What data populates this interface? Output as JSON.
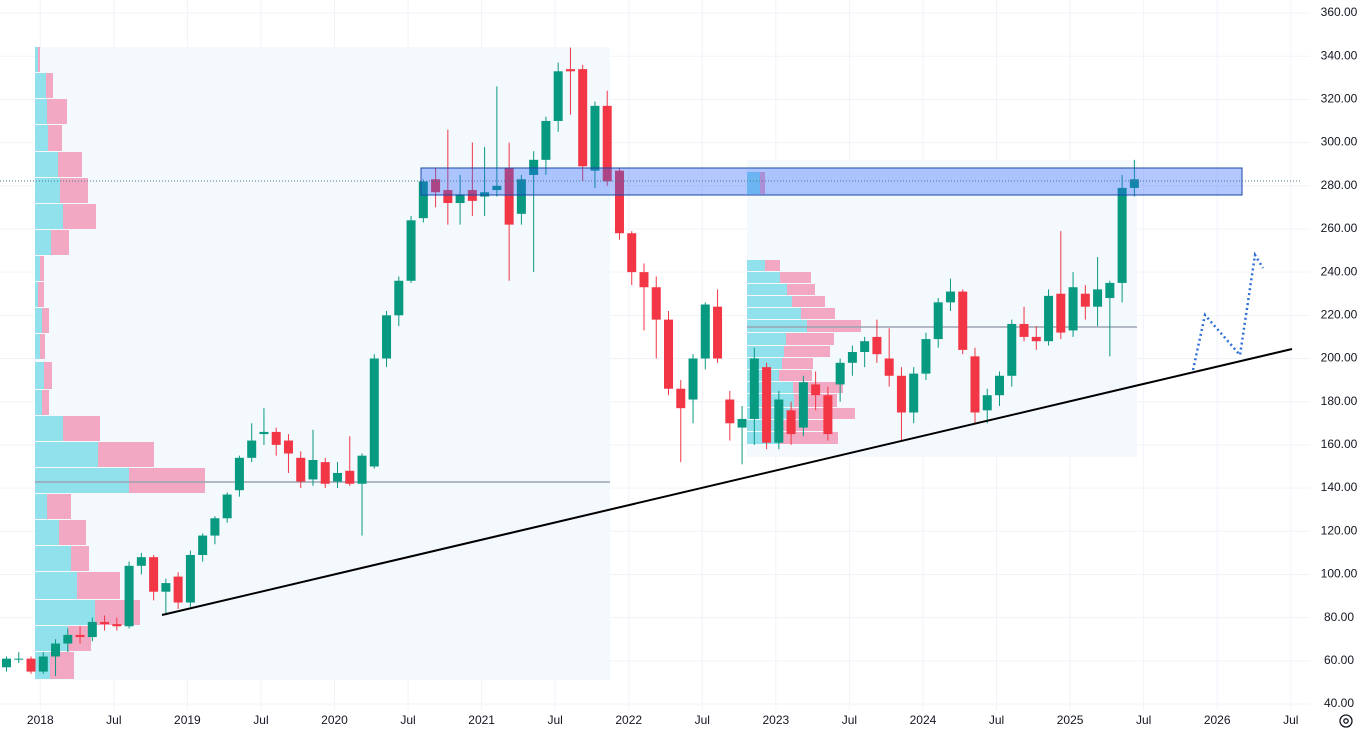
{
  "chart_data": {
    "type": "candlestick",
    "x": [
      "2017-10",
      "2017-11",
      "2017-12",
      "2018-01",
      "2018-02",
      "2018-03",
      "2018-04",
      "2018-05",
      "2018-06",
      "2018-07",
      "2018-08",
      "2018-09",
      "2018-10",
      "2018-11",
      "2018-12",
      "2019-01",
      "2019-02",
      "2019-03",
      "2019-04",
      "2019-05",
      "2019-06",
      "2019-07",
      "2019-08",
      "2019-09",
      "2019-10",
      "2019-11",
      "2019-12",
      "2020-01",
      "2020-02",
      "2020-03",
      "2020-04",
      "2020-05",
      "2020-06",
      "2020-07",
      "2020-08",
      "2020-09",
      "2020-10",
      "2020-11",
      "2020-12",
      "2021-01",
      "2021-02",
      "2021-03",
      "2021-04",
      "2021-05",
      "2021-06",
      "2021-07",
      "2021-08",
      "2021-09",
      "2021-10",
      "2021-11",
      "2021-12",
      "2022-01",
      "2022-02",
      "2022-03",
      "2022-04",
      "2022-05",
      "2022-06",
      "2022-07",
      "2022-08",
      "2022-09",
      "2022-10",
      "2022-11",
      "2022-12",
      "2023-01",
      "2023-02",
      "2023-03",
      "2023-04",
      "2023-05",
      "2023-06",
      "2023-07",
      "2023-08",
      "2023-09",
      "2023-10",
      "2023-11",
      "2023-12",
      "2024-01",
      "2024-02",
      "2024-03",
      "2024-04",
      "2024-05",
      "2024-06",
      "2024-07",
      "2024-08",
      "2024-09",
      "2024-10",
      "2024-11",
      "2024-12",
      "2025-01",
      "2025-02",
      "2025-03",
      "2025-04",
      "2025-05",
      "2025-06"
    ],
    "open": [
      57,
      61,
      61,
      55,
      62,
      68,
      72,
      71,
      78,
      77,
      76,
      104,
      108,
      92,
      99,
      87,
      109,
      118,
      126,
      139,
      154,
      165,
      166,
      162,
      154,
      144,
      152,
      143,
      148,
      142,
      150,
      200,
      220,
      236,
      265,
      283,
      278,
      272,
      278,
      275,
      278,
      288,
      267,
      285,
      292,
      310,
      334,
      334,
      287,
      317,
      287,
      258,
      240,
      233,
      218,
      186,
      181,
      200,
      224,
      181,
      168,
      172,
      196,
      161,
      176,
      168,
      188,
      183,
      188,
      198,
      203,
      210,
      200,
      192,
      175,
      193,
      209,
      226,
      231,
      201,
      176,
      183,
      192,
      216,
      210,
      208,
      230,
      213,
      230,
      224,
      228,
      235,
      279
    ],
    "high": [
      62,
      64,
      62,
      64,
      70,
      75,
      76,
      80,
      81,
      80,
      106,
      110,
      109,
      98,
      101,
      111,
      119,
      127,
      138,
      155,
      170,
      177,
      168,
      165,
      157,
      167,
      154,
      152,
      164,
      156,
      202,
      222,
      238,
      266,
      283,
      288,
      306,
      285,
      300,
      298,
      326,
      300,
      285,
      296,
      312,
      337,
      344,
      336,
      319,
      324,
      288,
      259,
      244,
      238,
      222,
      190,
      202,
      226,
      232,
      185,
      178,
      205,
      198,
      185,
      180,
      192,
      194,
      187,
      200,
      206,
      210,
      218,
      214,
      196,
      196,
      212,
      228,
      237,
      232,
      205,
      186,
      194,
      218,
      224,
      215,
      232,
      259,
      240,
      234,
      247,
      236,
      285,
      292
    ],
    "low": [
      55,
      59,
      54,
      54,
      53,
      64,
      68,
      69,
      74,
      74,
      75,
      100,
      88,
      82,
      84,
      85,
      106,
      114,
      124,
      136,
      152,
      160,
      155,
      147,
      140,
      141,
      140,
      140,
      141,
      118,
      149,
      196,
      215,
      235,
      263,
      270,
      262,
      262,
      266,
      266,
      275,
      236,
      262,
      240,
      285,
      305,
      313,
      282,
      279,
      280,
      255,
      234,
      213,
      200,
      183,
      152,
      170,
      195,
      198,
      162,
      151,
      160,
      158,
      158,
      160,
      164,
      176,
      162,
      180,
      192,
      196,
      198,
      187,
      162,
      170,
      190,
      205,
      222,
      202,
      170,
      170,
      178,
      187,
      208,
      204,
      206,
      209,
      210,
      218,
      215,
      201,
      226,
      275
    ],
    "close": [
      61,
      61,
      55,
      62,
      68,
      72,
      71,
      78,
      77,
      76,
      104,
      108,
      92,
      96,
      87,
      109,
      118,
      126,
      137,
      154,
      162,
      166,
      160,
      156,
      143,
      153,
      142,
      147,
      142,
      155,
      200,
      220,
      236,
      264,
      282,
      277,
      272,
      276,
      273,
      277,
      280,
      262,
      283,
      292,
      310,
      333,
      333,
      289,
      317,
      282,
      258,
      240,
      233,
      218,
      186,
      177,
      200,
      225,
      200,
      170,
      172,
      200,
      161,
      181,
      165,
      189,
      183,
      165,
      198,
      203,
      208,
      202,
      192,
      175,
      193,
      209,
      226,
      231,
      204,
      175,
      183,
      192,
      216,
      210,
      208,
      229,
      212,
      233,
      224,
      232,
      235,
      279,
      283
    ],
    "up_color": "#089981",
    "down_color": "#f23645",
    "xlim": [
      "2017-10",
      "2026-08"
    ],
    "xticks": [
      {
        "value": "2018-01",
        "label": "2018"
      },
      {
        "value": "2018-07",
        "label": "Jul"
      },
      {
        "value": "2019-01",
        "label": "2019"
      },
      {
        "value": "2019-07",
        "label": "Jul"
      },
      {
        "value": "2020-01",
        "label": "2020"
      },
      {
        "value": "2020-07",
        "label": "Jul"
      },
      {
        "value": "2021-01",
        "label": "2021"
      },
      {
        "value": "2021-07",
        "label": "Jul"
      },
      {
        "value": "2022-01",
        "label": "2022"
      },
      {
        "value": "2022-07",
        "label": "Jul"
      },
      {
        "value": "2023-01",
        "label": "2023"
      },
      {
        "value": "2023-07",
        "label": "Jul"
      },
      {
        "value": "2024-01",
        "label": "2024"
      },
      {
        "value": "2024-07",
        "label": "Jul"
      },
      {
        "value": "2025-01",
        "label": "2025"
      },
      {
        "value": "2025-07",
        "label": "Jul"
      },
      {
        "value": "2026-01",
        "label": "2026"
      },
      {
        "value": "2026-07",
        "label": "Jul"
      }
    ],
    "ylim": [
      40,
      360
    ],
    "yticks": [
      {
        "value": 40,
        "label": "40.00"
      },
      {
        "value": 60,
        "label": "60.00"
      },
      {
        "value": 80,
        "label": "80.00"
      },
      {
        "value": 100,
        "label": "100.00"
      },
      {
        "value": 120,
        "label": "120.00"
      },
      {
        "value": 140,
        "label": "140.00"
      },
      {
        "value": 160,
        "label": "160.00"
      },
      {
        "value": 180,
        "label": "180.00"
      },
      {
        "value": 200,
        "label": "200.00"
      },
      {
        "value": 220,
        "label": "220.00"
      },
      {
        "value": 240,
        "label": "240.00"
      },
      {
        "value": 260,
        "label": "260.00"
      },
      {
        "value": 280,
        "label": "280.00"
      },
      {
        "value": 300,
        "label": "300.00"
      },
      {
        "value": 320,
        "label": "320.00"
      },
      {
        "value": 340,
        "label": "340.00"
      },
      {
        "value": 360,
        "label": "360.00"
      }
    ],
    "grid": true
  }
}
